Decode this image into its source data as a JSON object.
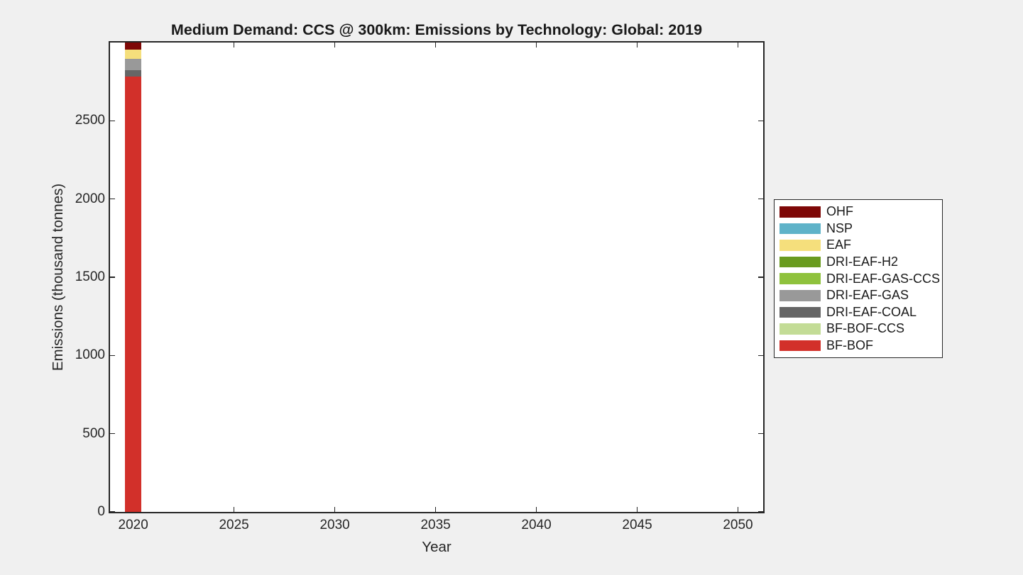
{
  "figure": {
    "background": "#F0F0F0",
    "plot_background": "#FFFFFF",
    "axis_color": "#262626",
    "text_color": "#1a1a1a"
  },
  "chart_data": {
    "type": "bar",
    "stacked": true,
    "title": "Medium Demand: CCS @ 300km: Emissions by Technology: Global: 2019",
    "xlabel": "Year",
    "ylabel": "Emissions (thousand tonnes)",
    "x": [
      2020
    ],
    "series": [
      {
        "name": "BF-BOF",
        "color": "#D2302A",
        "values": [
          2784
        ]
      },
      {
        "name": "BF-BOF-CCS",
        "color": "#C3DC96",
        "values": [
          0
        ]
      },
      {
        "name": "DRI-EAF-COAL",
        "color": "#666666",
        "values": [
          41
        ]
      },
      {
        "name": "DRI-EAF-GAS",
        "color": "#999999",
        "values": [
          73
        ]
      },
      {
        "name": "DRI-EAF-GAS-CCS",
        "color": "#8FC23D",
        "values": [
          0
        ]
      },
      {
        "name": "DRI-EAF-H2",
        "color": "#699B1E",
        "values": [
          0
        ]
      },
      {
        "name": "EAF",
        "color": "#F5DF7C",
        "values": [
          57
        ]
      },
      {
        "name": "NSP",
        "color": "#5FB3C9",
        "values": [
          0
        ]
      },
      {
        "name": "OHF",
        "color": "#7E0807",
        "values": [
          45
        ]
      }
    ],
    "stack_total_2020": 3000,
    "xlim": [
      2018.85,
      2051.25
    ],
    "ylim": [
      0,
      3000
    ],
    "xticks": [
      2020,
      2025,
      2030,
      2035,
      2040,
      2045,
      2050
    ],
    "yticks": [
      0,
      500,
      1000,
      1500,
      2000,
      2500
    ],
    "grid": false,
    "bar_width_years": 0.8,
    "legend": {
      "position": "right-outside",
      "entries": [
        "OHF",
        "NSP",
        "EAF",
        "DRI-EAF-H2",
        "DRI-EAF-GAS-CCS",
        "DRI-EAF-GAS",
        "DRI-EAF-COAL",
        "BF-BOF-CCS",
        "BF-BOF"
      ]
    }
  }
}
